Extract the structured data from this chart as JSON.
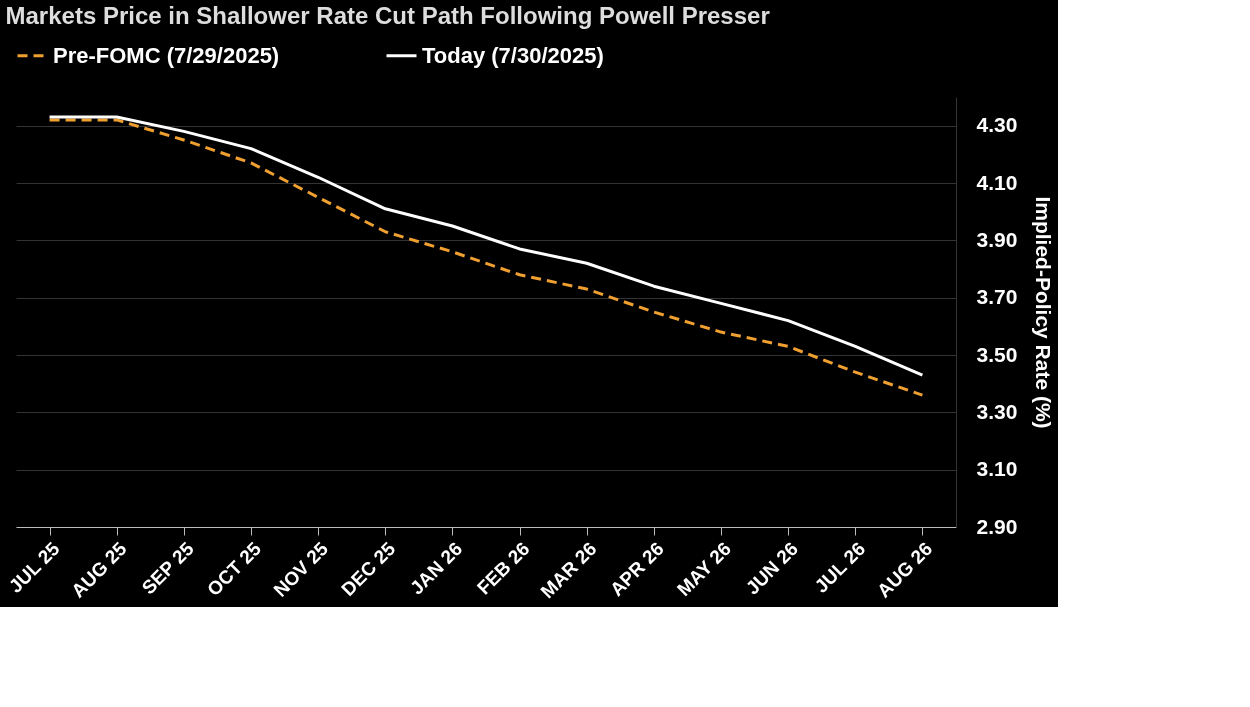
{
  "chart_data": {
    "type": "line",
    "title": "Markets Price in Shallower Rate Cut Path Following Powell Presser",
    "ylabel": "Implied-Policy Rate (%)",
    "categories": [
      "JUL 25",
      "AUG 25",
      "SEP 25",
      "OCT 25",
      "NOV 25",
      "DEC 25",
      "JAN 26",
      "FEB 26",
      "MAR 26",
      "APR 26",
      "MAY 26",
      "JUN 26",
      "JUL 26",
      "AUG 26"
    ],
    "series": [
      {
        "name": "Pre-FOMC (7/29/2025)",
        "color": "#f0a030",
        "line_style": "dashed",
        "values": [
          4.32,
          4.32,
          4.25,
          4.17,
          4.05,
          3.93,
          3.86,
          3.78,
          3.73,
          3.65,
          3.58,
          3.53,
          3.44,
          3.36
        ]
      },
      {
        "name": "Today (7/30/2025)",
        "color": "#ffffff",
        "line_style": "solid",
        "values": [
          4.33,
          4.33,
          4.28,
          4.22,
          4.12,
          4.01,
          3.95,
          3.87,
          3.82,
          3.74,
          3.68,
          3.62,
          3.53,
          3.43
        ]
      }
    ],
    "ylim": [
      2.9,
      4.4
    ],
    "yticks": [
      {
        "value": 2.9,
        "label": "2.90"
      },
      {
        "value": 3.1,
        "label": "3.10"
      },
      {
        "value": 3.3,
        "label": "3.30"
      },
      {
        "value": 3.5,
        "label": "3.50"
      },
      {
        "value": 3.7,
        "label": "3.70"
      },
      {
        "value": 3.9,
        "label": "3.90"
      },
      {
        "value": 4.1,
        "label": "4.10"
      },
      {
        "value": 4.3,
        "label": "4.30"
      }
    ],
    "grid": "y",
    "legend": "top",
    "marker": "none"
  }
}
